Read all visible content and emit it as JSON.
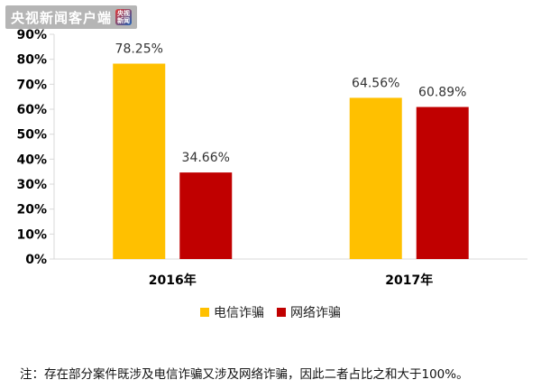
{
  "watermark": {
    "text": "央视新闻客户端",
    "logo_text": "央视新闻",
    "logo_icon": "cctv-news-logo-icon"
  },
  "chart_data": {
    "type": "bar",
    "categories": [
      "2016年",
      "2017年"
    ],
    "series": [
      {
        "name": "电信诈骗",
        "color": "#FFC000",
        "values": [
          78.25,
          64.56
        ],
        "labels": [
          "78.25%",
          "64.56%"
        ]
      },
      {
        "name": "网络诈骗",
        "color": "#C00000",
        "values": [
          34.66,
          60.89
        ],
        "labels": [
          "34.66%",
          "60.89%"
        ]
      }
    ],
    "ylim": [
      0,
      90
    ],
    "yticks": [
      0,
      10,
      20,
      30,
      40,
      50,
      60,
      70,
      80,
      90
    ],
    "ytick_labels": [
      "0%",
      "10%",
      "20%",
      "30%",
      "40%",
      "50%",
      "60%",
      "70%",
      "80%",
      "90%"
    ],
    "grid": false,
    "legend_position": "bottom",
    "title": "",
    "xlabel": "",
    "ylabel": ""
  },
  "footnote": "注：存在部分案件既涉及电信诈骗又涉及网络诈骗，因此二者占比之和大于100%。"
}
